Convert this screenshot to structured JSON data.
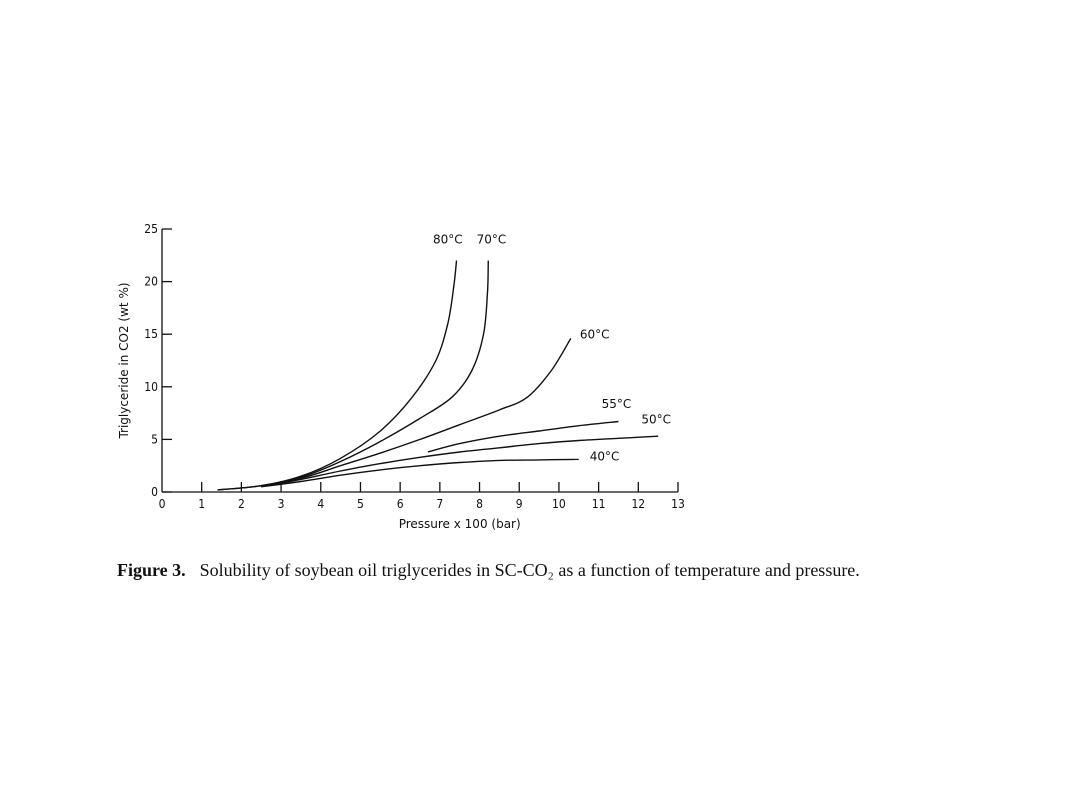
{
  "chart_data": {
    "type": "line",
    "xlabel": "Pressure x 100 (bar)",
    "ylabel": "Triglyceride in CO2 (wt %)",
    "xlim": [
      0,
      13
    ],
    "ylim": [
      0,
      25
    ],
    "x_ticks": [
      0,
      1,
      2,
      3,
      4,
      5,
      6,
      7,
      8,
      9,
      10,
      11,
      12,
      13
    ],
    "y_ticks": [
      0,
      5,
      10,
      15,
      20,
      25
    ],
    "grid": false,
    "series": [
      {
        "name": "80°C",
        "color": "#111111",
        "x": [
          1.4,
          2.5,
          3.5,
          4.5,
          5.5,
          6.3,
          6.9,
          7.2,
          7.35,
          7.42
        ],
        "y": [
          0.2,
          0.6,
          1.5,
          3.2,
          5.8,
          9.0,
          12.5,
          16.0,
          19.5,
          22.0
        ]
      },
      {
        "name": "70°C",
        "color": "#111111",
        "x": [
          1.4,
          2.5,
          3.5,
          4.5,
          5.5,
          6.5,
          7.3,
          7.8,
          8.1,
          8.2,
          8.22
        ],
        "y": [
          0.2,
          0.6,
          1.4,
          2.9,
          4.8,
          7.0,
          9.0,
          11.5,
          15.0,
          19.0,
          22.0
        ]
      },
      {
        "name": "60°C",
        "color": "#111111",
        "x": [
          2.5,
          3.5,
          4.5,
          5.5,
          6.5,
          7.5,
          8.5,
          9.2,
          9.8,
          10.3
        ],
        "y": [
          0.6,
          1.3,
          2.5,
          3.7,
          5.0,
          6.4,
          7.8,
          9.0,
          11.5,
          14.6
        ]
      },
      {
        "name": "55°C",
        "color": "#111111",
        "x": [
          6.7,
          7.5,
          8.5,
          9.5,
          10.5,
          11.5
        ],
        "y": [
          3.8,
          4.6,
          5.3,
          5.8,
          6.3,
          6.7
        ]
      },
      {
        "name": "50°C",
        "color": "#111111",
        "x": [
          2.5,
          3.5,
          4.5,
          5.5,
          6.5,
          7.5,
          8.5,
          9.5,
          10.5,
          11.5,
          12.5
        ],
        "y": [
          0.5,
          1.2,
          2.0,
          2.7,
          3.3,
          3.8,
          4.2,
          4.6,
          4.9,
          5.1,
          5.3
        ]
      },
      {
        "name": "40°C",
        "color": "#111111",
        "x": [
          2.5,
          3.5,
          4.5,
          5.5,
          6.5,
          7.5,
          8.5,
          9.5,
          10.4
        ],
        "y": [
          0.5,
          1.0,
          1.6,
          2.1,
          2.5,
          2.8,
          3.0,
          3.05,
          3.1
        ]
      }
    ],
    "annotations": [
      {
        "text": "80°C",
        "x": 7.2,
        "y": 23.6
      },
      {
        "text": "70°C",
        "x": 8.3,
        "y": 23.6
      },
      {
        "text": "60°C",
        "x": 10.9,
        "y": 14.6
      },
      {
        "text": "55°C",
        "x": 11.45,
        "y": 8.0
      },
      {
        "text": "50°C",
        "x": 12.45,
        "y": 6.5
      },
      {
        "text": "40°C",
        "x": 11.15,
        "y": 3.0
      }
    ]
  },
  "caption": {
    "label": "Figure 3.",
    "text": "Solubility of soybean oil triglycerides in SC-CO₂ as a function of temperature and pressure."
  }
}
